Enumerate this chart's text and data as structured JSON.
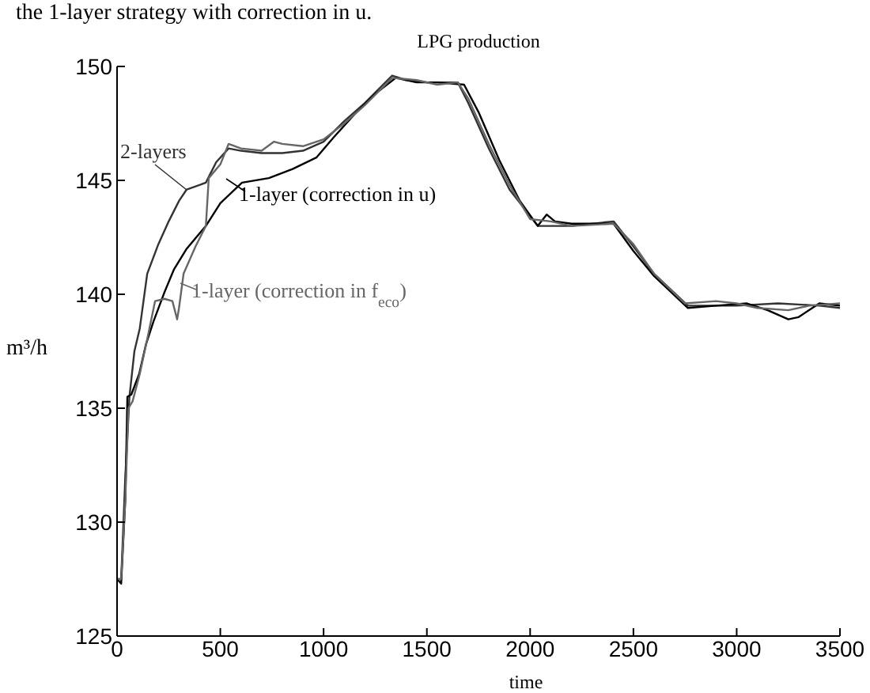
{
  "chart_data": {
    "type": "line",
    "title": "LPG production",
    "xlabel": "time",
    "ylabel": "m³/h",
    "annotations": [
      "the 1-layer strategy with correction in u."
    ],
    "xlim": [
      0,
      3500
    ],
    "xticks": [
      0,
      500,
      1000,
      1500,
      2000,
      2500,
      3000,
      3500
    ],
    "ylim": [
      125,
      150
    ],
    "yticks": [
      125,
      130,
      135,
      140,
      145,
      150
    ],
    "legend": "top left",
    "marker": "none",
    "line_style": "solid",
    "series": [
      {
        "name": "2-layers",
        "color": "#333333",
        "x": [
          0,
          20,
          40,
          60,
          84,
          110,
          146,
          200,
          250,
          300,
          337,
          430,
          480,
          540,
          600,
          700,
          800,
          900,
          1000,
          1100,
          1200,
          1332,
          1400,
          1500,
          1650,
          1700,
          1800,
          1900,
          2037,
          2200,
          2404,
          2500,
          2600,
          2764,
          2900,
          3000,
          3200,
          3400,
          3500
        ],
        "values": [
          127.5,
          127.5,
          132,
          135.5,
          137.5,
          138.5,
          140.9,
          142.2,
          143.2,
          144.1,
          144.6,
          144.9,
          145.8,
          146.4,
          146.3,
          146.2,
          146.2,
          146.3,
          146.7,
          147.6,
          148.4,
          149.6,
          149.4,
          149.3,
          149.3,
          148.4,
          146.4,
          144.6,
          143,
          143,
          143.2,
          142.1,
          140.9,
          139.5,
          139.5,
          139.5,
          139.6,
          139.5,
          139.4
        ]
      },
      {
        "name": "1-layer (correction in u)",
        "color": "#000000",
        "x": [
          0,
          20,
          40,
          50,
          69,
          107,
          140,
          176,
          230,
          276,
          337,
          430,
          500,
          605,
          735,
          850,
          965,
          1050,
          1150,
          1250,
          1350,
          1450,
          1550,
          1680,
          1750,
          1850,
          1950,
          2037,
          2080,
          2120,
          2200,
          2404,
          2500,
          2600,
          2764,
          2900,
          3050,
          3150,
          3250,
          3300,
          3400,
          3500
        ],
        "values": [
          127.5,
          127.3,
          131,
          135.5,
          135.6,
          136.5,
          137.8,
          138.8,
          140.1,
          141.1,
          142,
          143,
          144,
          144.9,
          145.1,
          145.5,
          146,
          146.9,
          147.9,
          148.8,
          149.5,
          149.3,
          149.3,
          149.2,
          148,
          145.9,
          144.1,
          143,
          143.5,
          143.2,
          143.1,
          143.1,
          141.9,
          140.8,
          139.4,
          139.5,
          139.6,
          139.3,
          138.9,
          139,
          139.6,
          139.5
        ]
      },
      {
        "name": "1-layer (correction in f$_{eco}$)",
        "color": "#666666",
        "x": [
          0,
          20,
          40,
          55,
          75,
          110,
          150,
          184,
          230,
          268,
          291,
          300,
          322,
          380,
          430,
          444,
          500,
          540,
          600,
          700,
          760,
          800,
          900,
          1000,
          1100,
          1200,
          1332,
          1450,
          1550,
          1650,
          1700,
          1800,
          1900,
          2000,
          2100,
          2200,
          2404,
          2500,
          2600,
          2750,
          2900,
          3000,
          3100,
          3250,
          3350,
          3500
        ],
        "values": [
          127.5,
          127.5,
          131,
          135,
          135.3,
          136.5,
          138.2,
          139.7,
          139.8,
          139.7,
          138.9,
          139.4,
          140.9,
          142.1,
          143,
          145.1,
          145.7,
          146.6,
          146.4,
          146.3,
          146.7,
          146.6,
          146.5,
          146.8,
          147.5,
          148.3,
          149.5,
          149.4,
          149.2,
          149.3,
          148.6,
          146.6,
          144.8,
          143.3,
          143.2,
          143,
          143.1,
          142.2,
          140.9,
          139.6,
          139.7,
          139.6,
          139.4,
          139.3,
          139.5,
          139.6
        ]
      }
    ]
  }
}
